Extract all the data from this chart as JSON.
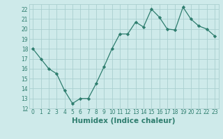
{
  "x": [
    0,
    1,
    2,
    3,
    4,
    5,
    6,
    7,
    8,
    9,
    10,
    11,
    12,
    13,
    14,
    15,
    16,
    17,
    18,
    19,
    20,
    21,
    22,
    23
  ],
  "y": [
    18,
    17,
    16,
    15.5,
    13.8,
    12.5,
    13,
    13,
    14.5,
    16.2,
    18,
    19.5,
    19.5,
    20.7,
    20.2,
    22,
    21.2,
    20,
    19.9,
    22.2,
    21,
    20.3,
    20,
    19.3
  ],
  "line_color": "#2e7d6e",
  "marker": "D",
  "marker_size": 2.2,
  "background_color": "#ceeaea",
  "grid_color": "#aacfcf",
  "xlabel": "Humidex (Indice chaleur)",
  "ylim": [
    12,
    22.5
  ],
  "xlim": [
    -0.5,
    23.5
  ],
  "yticks": [
    12,
    13,
    14,
    15,
    16,
    17,
    18,
    19,
    20,
    21,
    22
  ],
  "xticks": [
    0,
    1,
    2,
    3,
    4,
    5,
    6,
    7,
    8,
    9,
    10,
    11,
    12,
    13,
    14,
    15,
    16,
    17,
    18,
    19,
    20,
    21,
    22,
    23
  ],
  "tick_fontsize": 5.5,
  "xlabel_fontsize": 7.5,
  "tick_color": "#2e7d6e",
  "xlabel_color": "#2e7d6e",
  "line_width": 0.9
}
